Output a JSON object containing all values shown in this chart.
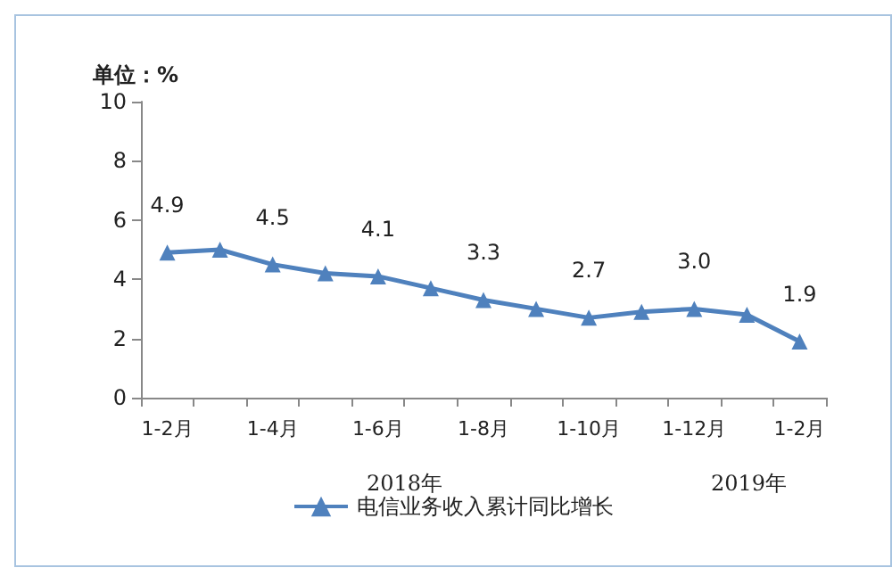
{
  "chart_data": {
    "type": "line",
    "ylabel": "单位：%",
    "categories": [
      "1-2月",
      null,
      "1-4月",
      null,
      "1-6月",
      null,
      "1-8月",
      null,
      "1-10月",
      null,
      "1-12月",
      null,
      "1-2月"
    ],
    "series": [
      {
        "name": "电信业务收入累计同比增长",
        "color": "#4f81bd",
        "values": [
          4.9,
          5.0,
          4.5,
          4.2,
          4.1,
          3.7,
          3.3,
          3.0,
          2.7,
          2.9,
          3.0,
          2.8,
          1.9
        ],
        "value_labels": [
          "4.9",
          null,
          "4.5",
          null,
          "4.1",
          null,
          "3.3",
          null,
          "2.7",
          null,
          "3.0",
          null,
          "1.9"
        ]
      }
    ],
    "ylim": [
      0,
      10
    ],
    "yticks": [
      0,
      2,
      4,
      6,
      8,
      10
    ],
    "grid": false,
    "legend": "bottom",
    "marker": "triangle",
    "line_style": "solid",
    "annotations": [
      "2018年",
      "2019年"
    ]
  }
}
